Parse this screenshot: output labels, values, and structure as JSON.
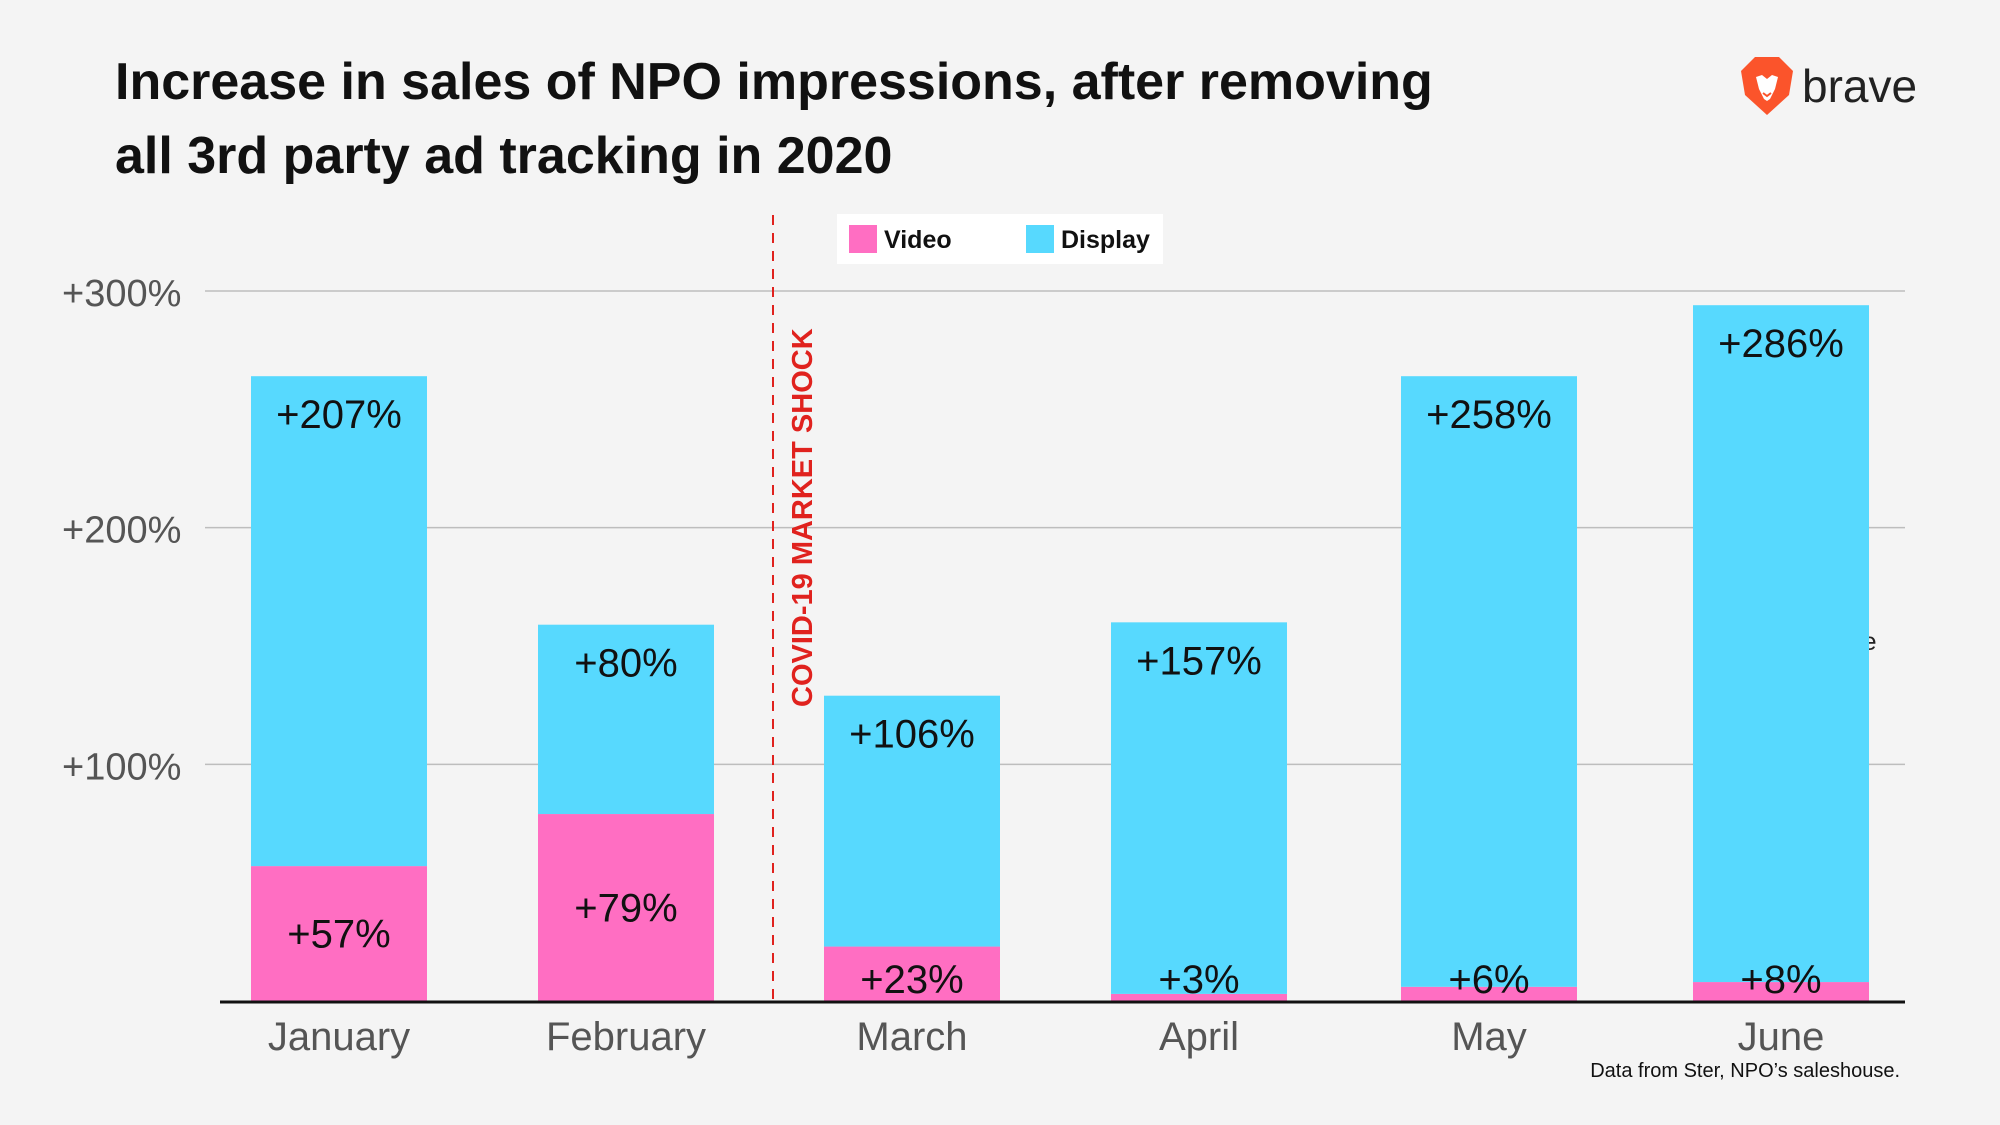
{
  "title_line1": "Increase in sales of NPO impressions, after removing",
  "title_line2": "all 3rd party ad tracking in 2020",
  "brand": "brave",
  "source_note": "Data from Ster, NPO’s saleshouse.",
  "colors": {
    "video": "#ff6ec2",
    "display": "#57d9fe",
    "annotation": "#e0221e",
    "brand": "#fb542b"
  },
  "chart_data": {
    "type": "bar",
    "stacked": true,
    "title": "Increase in sales of NPO impressions, after removing all 3rd party ad tracking in 2020",
    "categories": [
      "January",
      "February",
      "March",
      "April",
      "May",
      "June"
    ],
    "series": [
      {
        "name": "Video",
        "values": [
          57,
          79,
          23,
          3,
          6,
          8
        ],
        "labels": [
          "+57%",
          "+79%",
          "+23%",
          "+3%",
          "+6%",
          "+8%"
        ]
      },
      {
        "name": "Display",
        "values": [
          207,
          80,
          106,
          157,
          258,
          286
        ],
        "labels": [
          "+207%",
          "+80%",
          "+106%",
          "+157%",
          "+258%",
          "+286%"
        ]
      }
    ],
    "yticks": [
      100,
      200,
      300
    ],
    "ytick_labels": [
      "+100%",
      "+200%",
      "+300%"
    ],
    "ylim": [
      0,
      300
    ],
    "legend": [
      "Video",
      "Display"
    ],
    "legend_position": "top-center",
    "annotation": {
      "text": "COVID-19 MARKET SHOCK",
      "between": [
        "February",
        "March"
      ]
    },
    "grid": true
  }
}
